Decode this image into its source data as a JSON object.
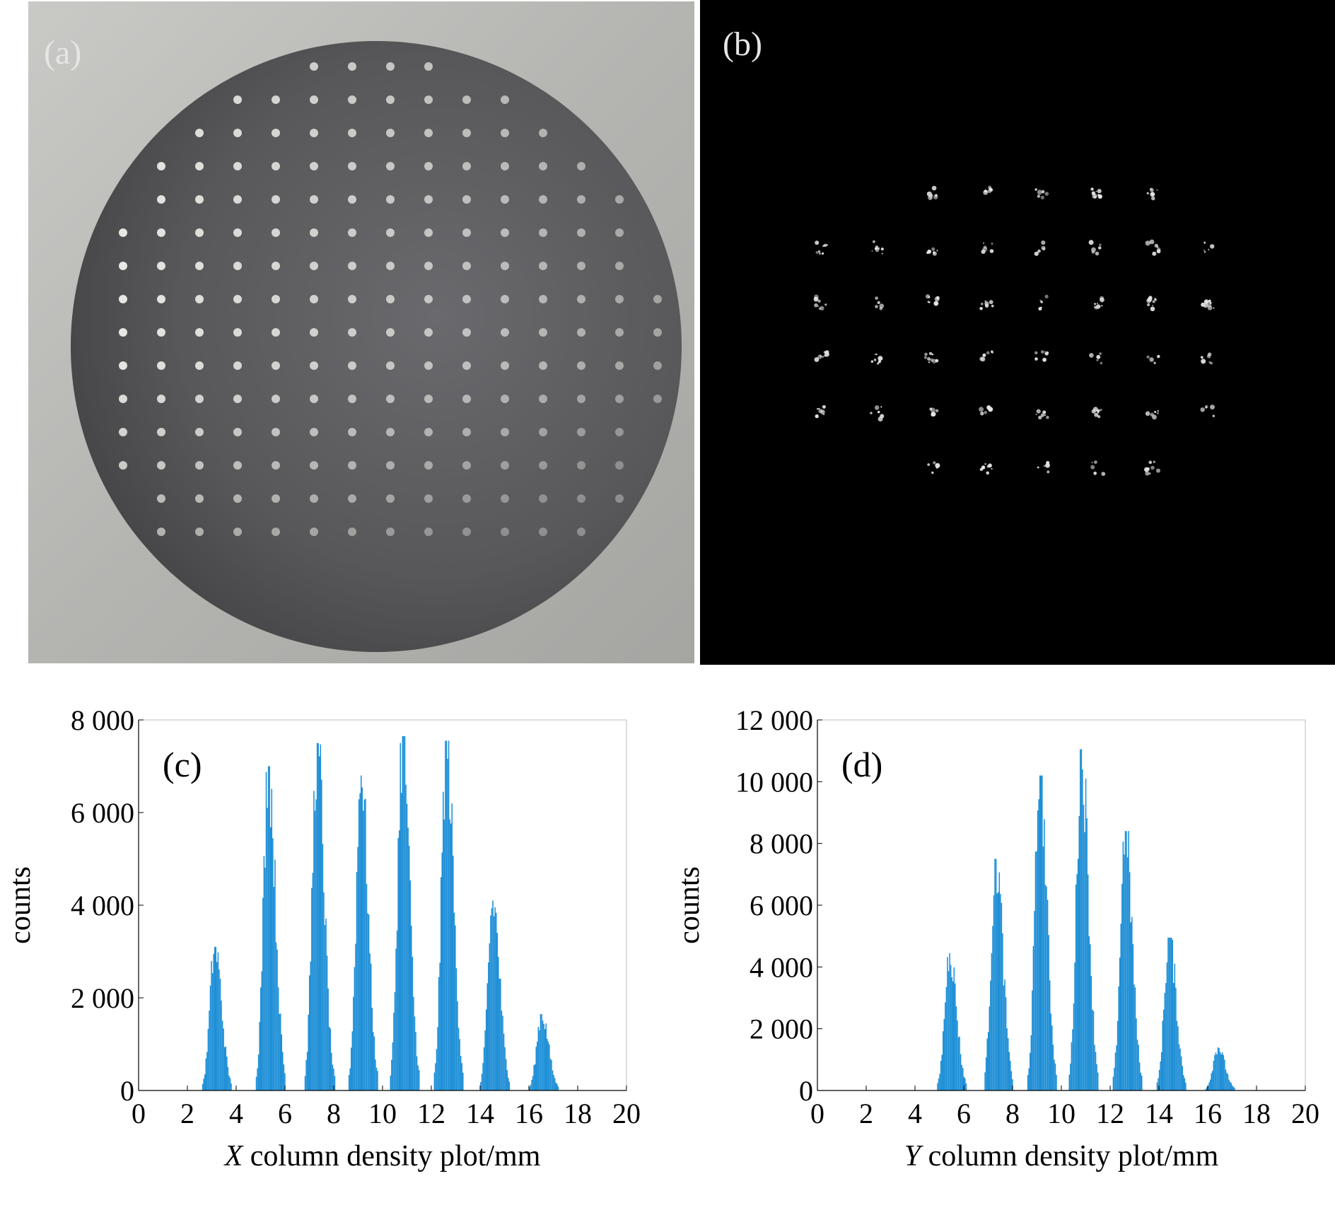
{
  "panel_labels": {
    "a": "(a)",
    "b": "(b)",
    "c": "(c)",
    "d": "(d)"
  },
  "colors": {
    "bar": "#1f8fd6",
    "photo_bg": "#b9b9b6",
    "plate": "#545454",
    "hole": "#f4f4f0",
    "spot": "#e8e8e8"
  },
  "chart_data": [
    {
      "type": "bar",
      "panel": "(c)",
      "xlabel_italic": "X",
      "xlabel": " column density plot/mm",
      "ylabel": "counts",
      "xlim": [
        0,
        20
      ],
      "ylim": [
        0,
        8000
      ],
      "xticks": [
        "0",
        "2",
        "4",
        "6",
        "8",
        "10",
        "12",
        "14",
        "16",
        "18",
        "20"
      ],
      "yticks": [
        "0",
        "2 000",
        "4 000",
        "6 000",
        "8 000"
      ],
      "peaks": [
        {
          "x": 3.1,
          "height": 3100
        },
        {
          "x": 5.3,
          "height": 7000
        },
        {
          "x": 7.3,
          "height": 7500
        },
        {
          "x": 9.1,
          "height": 6800
        },
        {
          "x": 10.8,
          "height": 7650
        },
        {
          "x": 12.6,
          "height": 7550
        },
        {
          "x": 14.5,
          "height": 4100
        },
        {
          "x": 16.5,
          "height": 1650
        }
      ]
    },
    {
      "type": "bar",
      "panel": "(d)",
      "xlabel_italic": "Y",
      "xlabel": " column density plot/mm",
      "ylabel": "counts",
      "xlim": [
        0,
        20
      ],
      "ylim": [
        0,
        12000
      ],
      "xticks": [
        "0",
        "2",
        "4",
        "6",
        "8",
        "10",
        "12",
        "14",
        "16",
        "18",
        "20"
      ],
      "yticks": [
        "0",
        "2 000",
        "4 000",
        "6 000",
        "8 000",
        "10 000",
        "12 000"
      ],
      "peaks": [
        {
          "x": 5.4,
          "height": 4450
        },
        {
          "x": 7.3,
          "height": 7500
        },
        {
          "x": 9.1,
          "height": 10200
        },
        {
          "x": 10.8,
          "height": 11050
        },
        {
          "x": 12.6,
          "height": 8400
        },
        {
          "x": 14.4,
          "height": 4950
        },
        {
          "x": 16.4,
          "height": 1400
        }
      ]
    }
  ]
}
